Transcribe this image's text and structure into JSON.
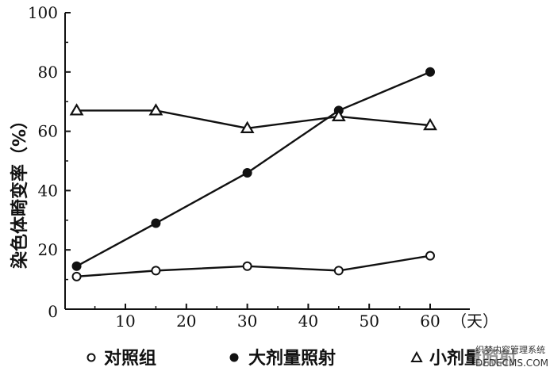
{
  "chart_data": {
    "type": "line",
    "ylabel": "染色体畸变率（%）",
    "x_unit_label": "（天）",
    "xlim": [
      0,
      65
    ],
    "ylim": [
      0,
      100
    ],
    "x_ticks": [
      10,
      20,
      30,
      40,
      50,
      60
    ],
    "y_ticks": [
      0,
      20,
      40,
      60,
      80,
      100
    ],
    "origin_label": "0",
    "grid": false,
    "legend_position": "bottom",
    "series": [
      {
        "name": "对照组",
        "marker": "open-circle",
        "x": [
          2,
          15,
          30,
          45,
          60
        ],
        "y": [
          11,
          13,
          14.5,
          13,
          18
        ]
      },
      {
        "name": "大剂量照射",
        "marker": "filled-circle",
        "x": [
          2,
          15,
          30,
          45,
          60
        ],
        "y": [
          14.5,
          29,
          46,
          67,
          80
        ]
      },
      {
        "name": "小剂量照射",
        "marker": "open-triangle",
        "x": [
          2,
          15,
          30,
          45,
          60
        ],
        "y": [
          67,
          67,
          61,
          65,
          62
        ]
      }
    ]
  },
  "legend": [
    {
      "symbol": "o",
      "label": "对照组"
    },
    {
      "symbol": "●",
      "label": "大剂量照射"
    },
    {
      "symbol": "△",
      "label": "小剂量照射"
    }
  ],
  "watermark": {
    "line1": "织梦内容管理系统",
    "line2": "DEDECMS.COM"
  },
  "colors": {
    "ink": "#111111",
    "background": "#ffffff"
  }
}
